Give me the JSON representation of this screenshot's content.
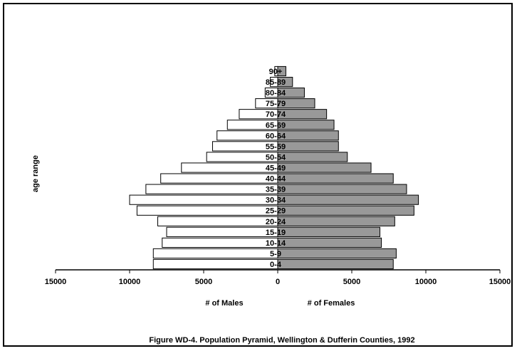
{
  "chart_data": {
    "type": "bar",
    "orientation": "horizontal",
    "title": "Figure WD-4.  Population Pyramid, Wellington & Dufferin Counties, 1992",
    "ylabel": "age range",
    "xlabel_left": "# of Males",
    "xlabel_right": "# of  Females",
    "xlim": [
      -15000,
      15000
    ],
    "x_ticks": [
      -15000,
      -10000,
      -5000,
      0,
      5000,
      10000,
      15000
    ],
    "x_tick_labels": [
      "15000",
      "10000",
      "5000",
      "0",
      "5000",
      "10000",
      "15000"
    ],
    "categories": [
      "0-4",
      "5-9",
      "10-14",
      "15-19",
      "20-24",
      "25-29",
      "30-34",
      "35-39",
      "40-44",
      "45-49",
      "50-54",
      "55-59",
      "60-64",
      "65-69",
      "70-74",
      "75-79",
      "80-84",
      "85-89",
      "90+"
    ],
    "series": [
      {
        "name": "Males",
        "color": "#ffffff",
        "values": [
          8400,
          8400,
          7800,
          7500,
          8100,
          9500,
          10000,
          8900,
          7900,
          6500,
          4800,
          4400,
          4100,
          3400,
          2600,
          1500,
          850,
          500,
          200
        ]
      },
      {
        "name": "Females",
        "color": "#999999",
        "values": [
          7800,
          8000,
          7000,
          6900,
          7900,
          9200,
          9500,
          8700,
          7800,
          6300,
          4700,
          4100,
          4100,
          3800,
          3300,
          2500,
          1800,
          1000,
          550
        ]
      }
    ],
    "grid": false,
    "legend": "none"
  }
}
